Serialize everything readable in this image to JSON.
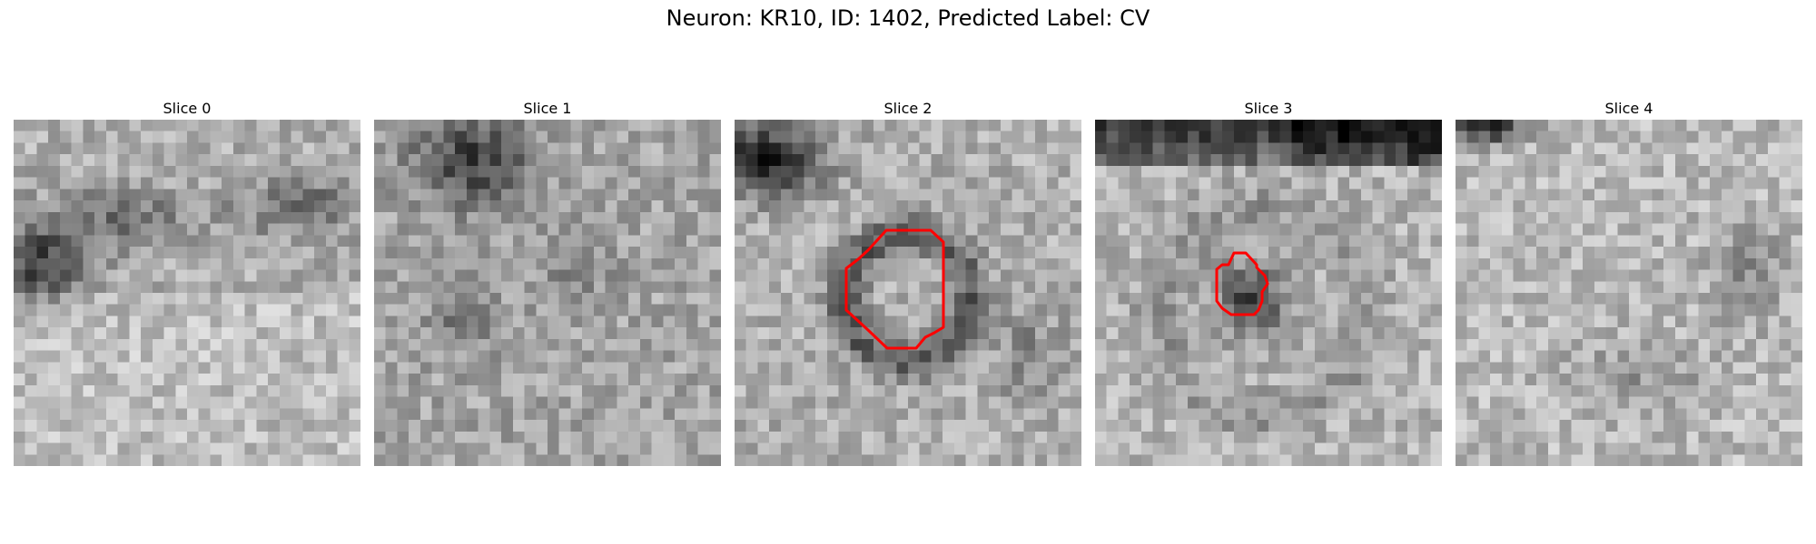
{
  "figure": {
    "title": "Neuron: KR10, ID: 1402, Predicted Label: CV"
  },
  "panels": [
    {
      "title": "Slice 0",
      "texture": "noise-with-dark-band-left-and-top-right",
      "contour": null
    },
    {
      "title": "Slice 1",
      "texture": "noise-with-dark-top-left-blotch",
      "contour": null
    },
    {
      "title": "Slice 2",
      "texture": "noise-with-dark-top-left-corner-and-dark-ring-center",
      "contour": {
        "color": "#ff0000",
        "label": "segmentation-contour"
      }
    },
    {
      "title": "Slice 3",
      "texture": "noise-with-dark-top-band-and-dark-blob-center",
      "contour": {
        "color": "#ff0000",
        "label": "segmentation-contour"
      }
    },
    {
      "title": "Slice 4",
      "texture": "light-noise-with-dark-top-left-corner",
      "contour": null
    }
  ],
  "colors": {
    "contour": "#ff0000",
    "background": "#ffffff"
  }
}
